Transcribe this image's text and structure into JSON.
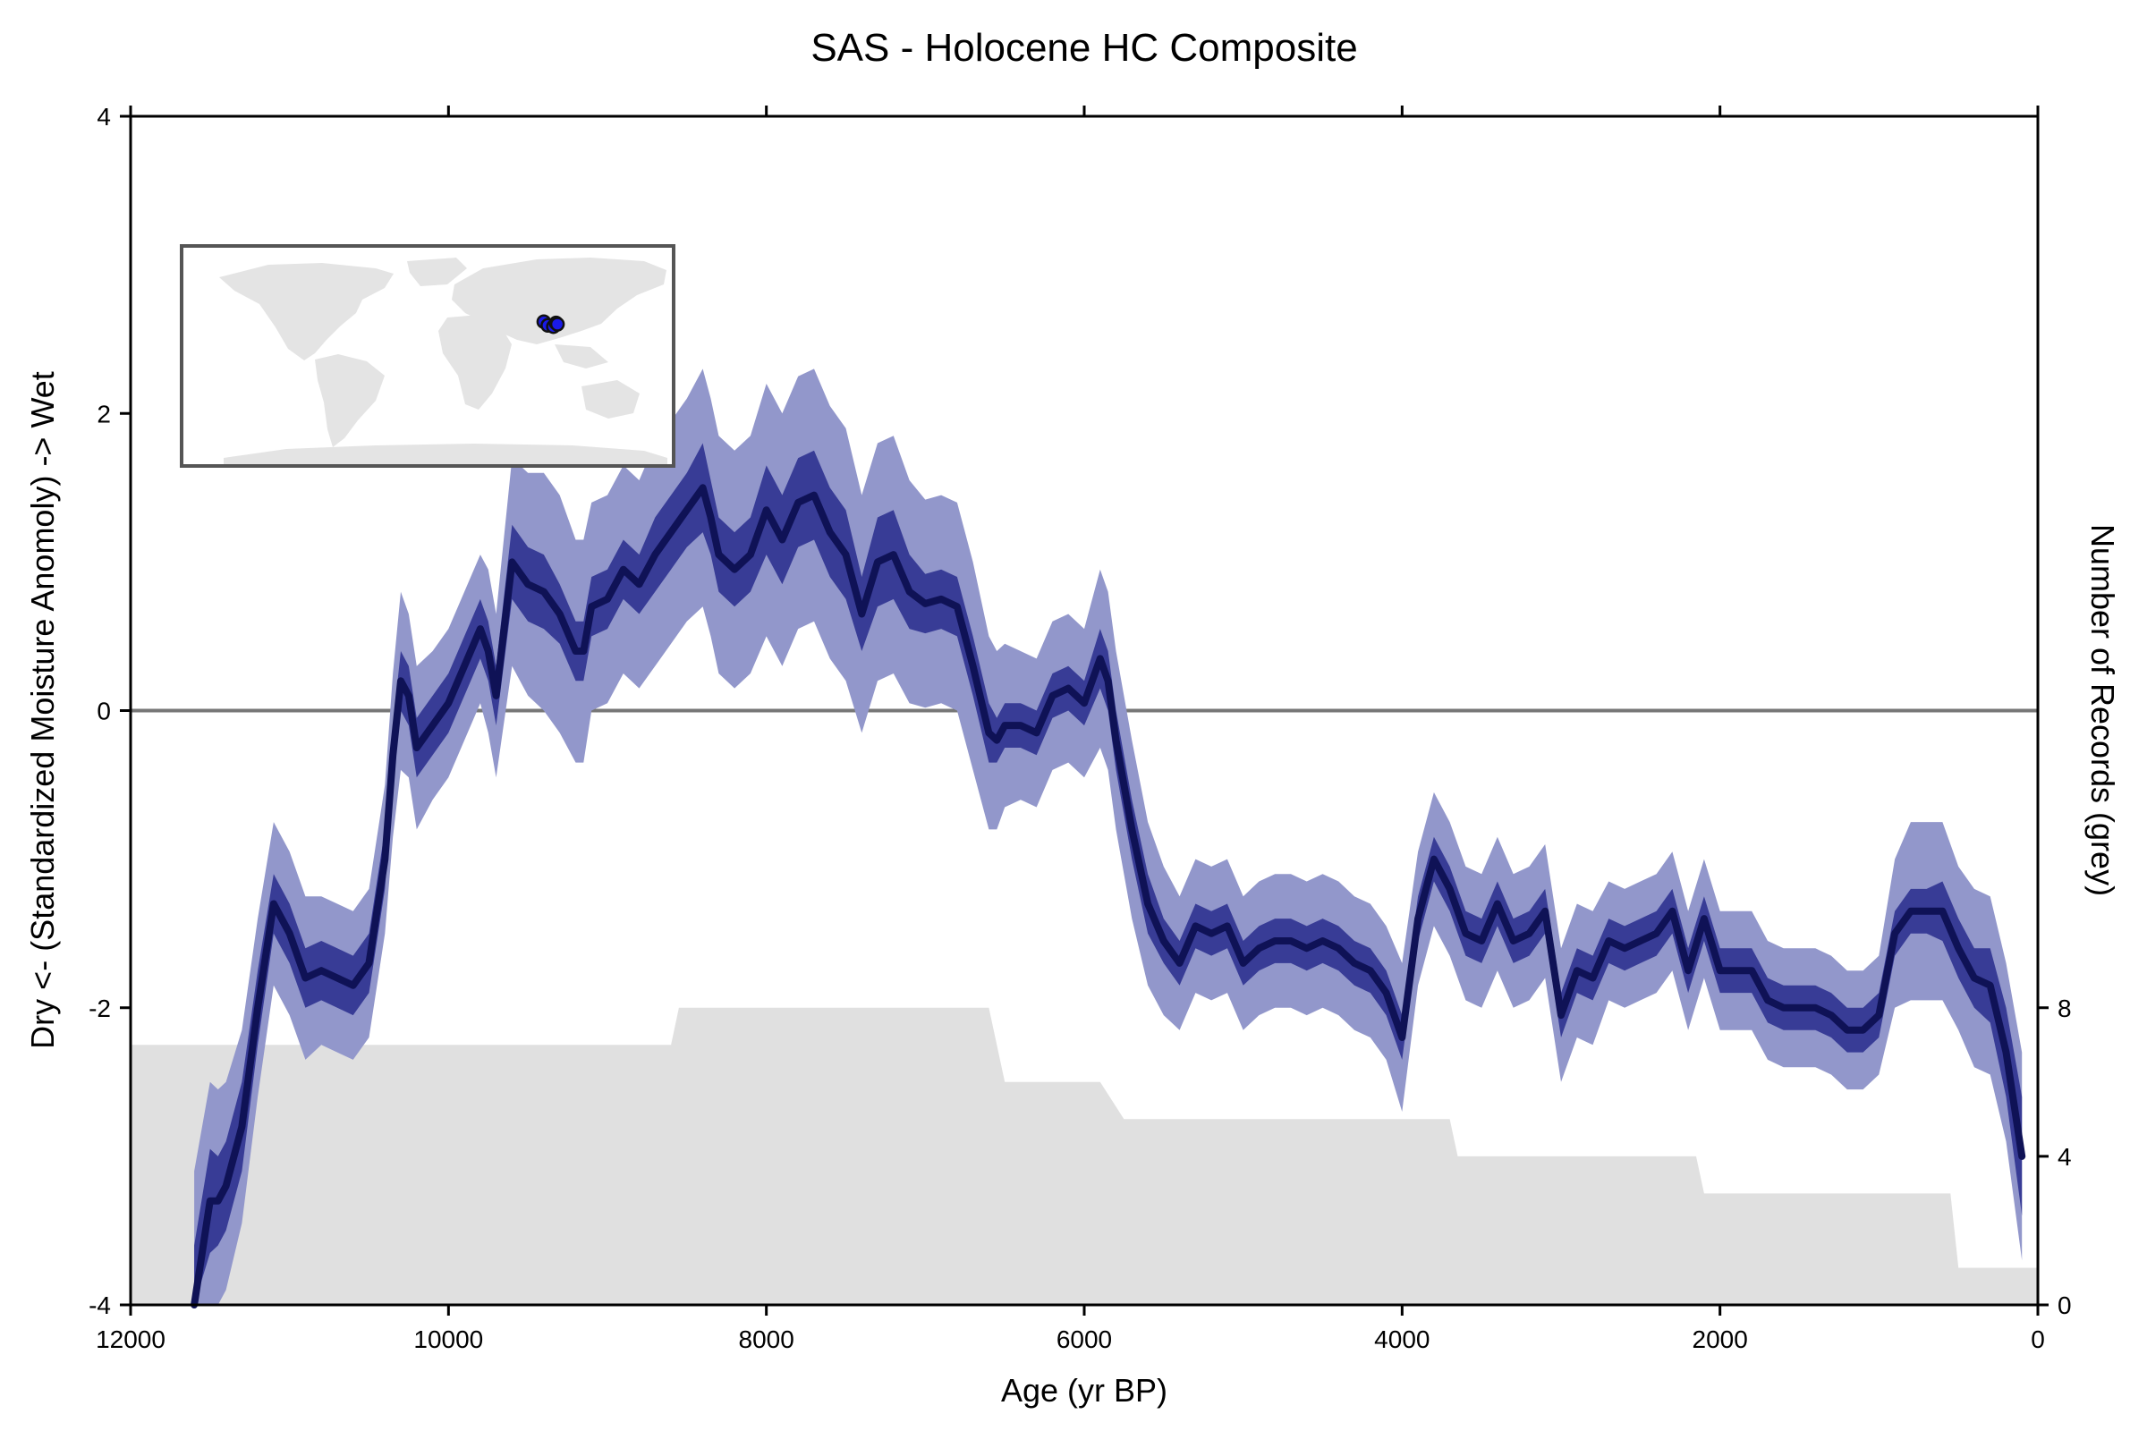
{
  "chart_data": {
    "type": "line",
    "title": "SAS - Holocene HC Composite",
    "xlabel": "Age (yr BP)",
    "ylabel": "Dry <- (Standardized Moisture Anomoly) -> Wet",
    "y2label": "Number of Records (grey)",
    "xlim": [
      12000,
      0
    ],
    "ylim": [
      -4,
      4
    ],
    "y2lim": [
      0,
      32
    ],
    "x_ticks": [
      12000,
      10000,
      8000,
      6000,
      4000,
      2000,
      0
    ],
    "y_ticks": [
      -4,
      -2,
      0,
      2,
      4
    ],
    "y2_ticks": [
      0,
      4,
      8
    ],
    "grid": false,
    "zero_line": 0,
    "colors": {
      "median": "#0f1256",
      "inner_band": "#383c96",
      "outer_band": "#9297cb",
      "record_count": "#e0e0e0",
      "zero_line": "#777777",
      "map_land": "#e4e4e4",
      "site_marker": "#1a1ae8"
    },
    "composite": {
      "x": [
        11600,
        11500,
        11450,
        11400,
        11300,
        11200,
        11100,
        11000,
        10900,
        10800,
        10700,
        10600,
        10500,
        10400,
        10350,
        10300,
        10250,
        10200,
        10100,
        10000,
        9900,
        9800,
        9750,
        9700,
        9600,
        9500,
        9400,
        9300,
        9200,
        9150,
        9100,
        9000,
        8900,
        8800,
        8700,
        8600,
        8500,
        8400,
        8350,
        8300,
        8200,
        8100,
        8000,
        7900,
        7800,
        7700,
        7600,
        7500,
        7400,
        7300,
        7200,
        7100,
        7000,
        6900,
        6800,
        6700,
        6600,
        6550,
        6500,
        6400,
        6300,
        6200,
        6100,
        6000,
        5900,
        5850,
        5800,
        5700,
        5600,
        5500,
        5400,
        5300,
        5200,
        5100,
        5000,
        4900,
        4800,
        4700,
        4600,
        4500,
        4400,
        4300,
        4200,
        4100,
        4000,
        3900,
        3800,
        3700,
        3600,
        3500,
        3400,
        3300,
        3200,
        3100,
        3000,
        2900,
        2800,
        2700,
        2600,
        2500,
        2400,
        2300,
        2200,
        2100,
        2000,
        1900,
        1800,
        1700,
        1600,
        1500,
        1400,
        1300,
        1200,
        1100,
        1000,
        900,
        800,
        700,
        600,
        500,
        400,
        300,
        200,
        100
      ],
      "median": [
        -4.0,
        -3.3,
        -3.3,
        -3.2,
        -2.8,
        -2.0,
        -1.3,
        -1.5,
        -1.8,
        -1.75,
        -1.8,
        -1.85,
        -1.7,
        -1.0,
        -0.3,
        0.2,
        0.1,
        -0.25,
        -0.1,
        0.05,
        0.3,
        0.55,
        0.4,
        0.1,
        1.0,
        0.85,
        0.8,
        0.65,
        0.4,
        0.4,
        0.7,
        0.75,
        0.95,
        0.85,
        1.05,
        1.2,
        1.35,
        1.5,
        1.3,
        1.05,
        0.95,
        1.05,
        1.35,
        1.15,
        1.4,
        1.45,
        1.2,
        1.05,
        0.65,
        1.0,
        1.05,
        0.8,
        0.72,
        0.75,
        0.7,
        0.3,
        -0.15,
        -0.2,
        -0.1,
        -0.1,
        -0.15,
        0.1,
        0.15,
        0.05,
        0.35,
        0.2,
        -0.2,
        -0.8,
        -1.3,
        -1.55,
        -1.7,
        -1.45,
        -1.5,
        -1.45,
        -1.7,
        -1.6,
        -1.55,
        -1.55,
        -1.6,
        -1.55,
        -1.6,
        -1.7,
        -1.75,
        -1.9,
        -2.2,
        -1.4,
        -1.0,
        -1.2,
        -1.5,
        -1.55,
        -1.3,
        -1.55,
        -1.5,
        -1.35,
        -2.05,
        -1.75,
        -1.8,
        -1.55,
        -1.6,
        -1.55,
        -1.5,
        -1.35,
        -1.75,
        -1.4,
        -1.75,
        -1.75,
        -1.75,
        -1.95,
        -2.0,
        -2.0,
        -2.0,
        -2.05,
        -2.15,
        -2.15,
        -2.05,
        -1.5,
        -1.35,
        -1.35,
        -1.35,
        -1.6,
        -1.8,
        -1.85,
        -2.3,
        -3.0
      ],
      "inner_half_width": [
        0.4,
        0.35,
        0.3,
        0.3,
        0.3,
        0.25,
        0.2,
        0.2,
        0.2,
        0.2,
        0.2,
        0.2,
        0.2,
        0.2,
        0.2,
        0.2,
        0.2,
        0.2,
        0.2,
        0.2,
        0.2,
        0.2,
        0.2,
        0.2,
        0.25,
        0.25,
        0.25,
        0.2,
        0.2,
        0.2,
        0.2,
        0.2,
        0.2,
        0.2,
        0.25,
        0.25,
        0.25,
        0.3,
        0.25,
        0.25,
        0.25,
        0.25,
        0.3,
        0.3,
        0.3,
        0.3,
        0.3,
        0.3,
        0.25,
        0.3,
        0.3,
        0.25,
        0.2,
        0.2,
        0.2,
        0.2,
        0.2,
        0.15,
        0.15,
        0.15,
        0.15,
        0.15,
        0.15,
        0.15,
        0.2,
        0.2,
        0.2,
        0.2,
        0.2,
        0.15,
        0.15,
        0.15,
        0.15,
        0.15,
        0.15,
        0.15,
        0.15,
        0.15,
        0.15,
        0.15,
        0.15,
        0.15,
        0.15,
        0.15,
        0.15,
        0.15,
        0.15,
        0.15,
        0.15,
        0.15,
        0.15,
        0.15,
        0.15,
        0.15,
        0.15,
        0.15,
        0.15,
        0.15,
        0.15,
        0.15,
        0.15,
        0.15,
        0.15,
        0.15,
        0.15,
        0.15,
        0.15,
        0.15,
        0.15,
        0.15,
        0.15,
        0.15,
        0.15,
        0.15,
        0.15,
        0.15,
        0.15,
        0.15,
        0.2,
        0.2,
        0.2,
        0.25,
        0.3,
        0.4
      ],
      "outer_half_width": [
        0.9,
        0.8,
        0.75,
        0.7,
        0.65,
        0.6,
        0.55,
        0.55,
        0.55,
        0.5,
        0.5,
        0.5,
        0.5,
        0.5,
        0.55,
        0.6,
        0.55,
        0.55,
        0.5,
        0.5,
        0.5,
        0.5,
        0.55,
        0.55,
        0.7,
        0.75,
        0.8,
        0.8,
        0.75,
        0.75,
        0.7,
        0.7,
        0.7,
        0.7,
        0.75,
        0.75,
        0.75,
        0.8,
        0.8,
        0.8,
        0.8,
        0.8,
        0.85,
        0.85,
        0.85,
        0.85,
        0.85,
        0.85,
        0.8,
        0.8,
        0.8,
        0.75,
        0.7,
        0.7,
        0.7,
        0.7,
        0.65,
        0.6,
        0.55,
        0.5,
        0.5,
        0.5,
        0.5,
        0.5,
        0.6,
        0.6,
        0.6,
        0.6,
        0.55,
        0.5,
        0.45,
        0.45,
        0.45,
        0.45,
        0.45,
        0.45,
        0.45,
        0.45,
        0.45,
        0.45,
        0.45,
        0.45,
        0.45,
        0.45,
        0.5,
        0.45,
        0.45,
        0.45,
        0.45,
        0.45,
        0.45,
        0.45,
        0.45,
        0.45,
        0.45,
        0.45,
        0.45,
        0.4,
        0.4,
        0.4,
        0.4,
        0.4,
        0.4,
        0.4,
        0.4,
        0.4,
        0.4,
        0.4,
        0.4,
        0.4,
        0.4,
        0.4,
        0.4,
        0.4,
        0.4,
        0.5,
        0.6,
        0.6,
        0.6,
        0.55,
        0.6,
        0.6,
        0.6,
        0.7
      ]
    },
    "record_count": {
      "x": [
        12000,
        8600,
        8550,
        6600,
        6550,
        6500,
        5900,
        5750,
        3700,
        3650,
        2150,
        2100,
        550,
        500,
        0
      ],
      "values": [
        7,
        7,
        8,
        8,
        7,
        6,
        6,
        5,
        5,
        4,
        4,
        3,
        3,
        1,
        1
      ]
    },
    "inset_map": {
      "sites": [
        {
          "lon": 85,
          "lat": 28
        },
        {
          "lon": 88,
          "lat": 25
        },
        {
          "lon": 92,
          "lat": 24
        },
        {
          "lon": 94,
          "lat": 27
        },
        {
          "lon": 95,
          "lat": 26
        }
      ]
    }
  }
}
